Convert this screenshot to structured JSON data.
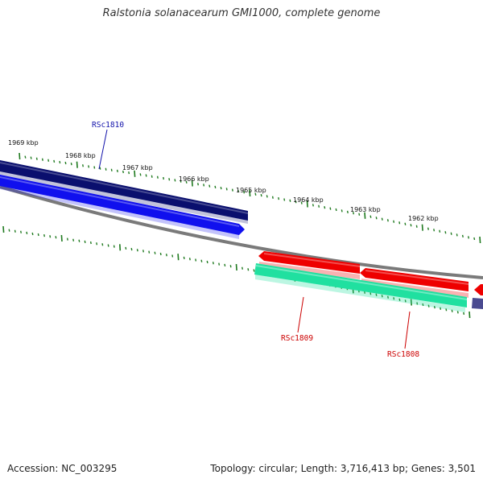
{
  "title": "Ralstonia solanacearum GMI1000, complete genome",
  "footer": {
    "accession": "Accession: NC_003295",
    "info": "Topology: circular; Length: 3,716,413 bp; Genes: 3,501"
  },
  "colors": {
    "backbone": "#7a7a7a",
    "tick": "#1f7a1f",
    "navy": "#0a0f6e",
    "blue": "#1010ee",
    "red": "#ee0000",
    "teal": "#20e0a0",
    "slate": "#4a4a90",
    "label_blue": "#1111aa",
    "label_red": "#cc0000"
  },
  "scale": {
    "labels": [
      "1969 kbp",
      "1968 kbp",
      "1967 kbp",
      "1966 kbp",
      "1965 kbp",
      "1964 kbp",
      "1963 kbp",
      "1962 kbp"
    ]
  },
  "genes": [
    {
      "name": "RSc1810",
      "label_color": "label_blue"
    },
    {
      "name": "RSc1809",
      "label_color": "label_red"
    },
    {
      "name": "RSc1808",
      "label_color": "label_red"
    }
  ]
}
